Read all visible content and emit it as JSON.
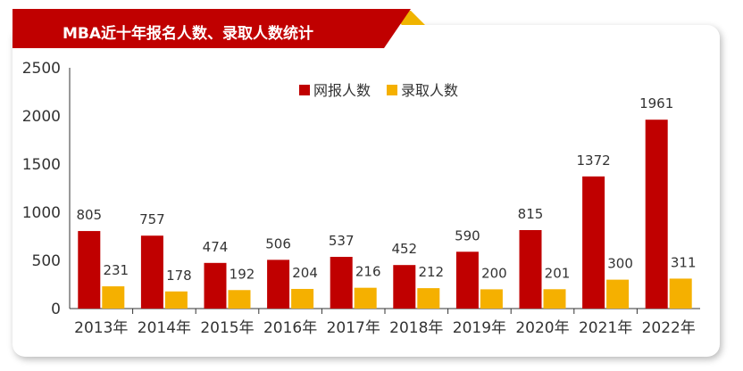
{
  "colors": {
    "title_red": "#c00000",
    "title_gold": "#f0b400",
    "series_apply": "#c00000",
    "series_admit": "#f5b000",
    "axis": "#333333"
  },
  "chart_data": {
    "type": "bar",
    "title": "MBA近十年报名人数、录取人数统计",
    "categories": [
      "2013年",
      "2014年",
      "2015年",
      "2016年",
      "2017年",
      "2018年",
      "2019年",
      "2020年",
      "2021年",
      "2022年"
    ],
    "series": [
      {
        "name": "网报人数",
        "values": [
          805,
          757,
          474,
          506,
          537,
          452,
          590,
          815,
          1372,
          1961
        ]
      },
      {
        "name": "录取人数",
        "values": [
          231,
          178,
          192,
          204,
          216,
          212,
          200,
          201,
          300,
          311
        ]
      }
    ],
    "ylim": [
      0,
      2500
    ],
    "yticks": [
      0,
      500,
      1000,
      1500,
      2000,
      2500
    ],
    "xlabel": "",
    "ylabel": "",
    "legend": "top-center",
    "grid": false
  }
}
